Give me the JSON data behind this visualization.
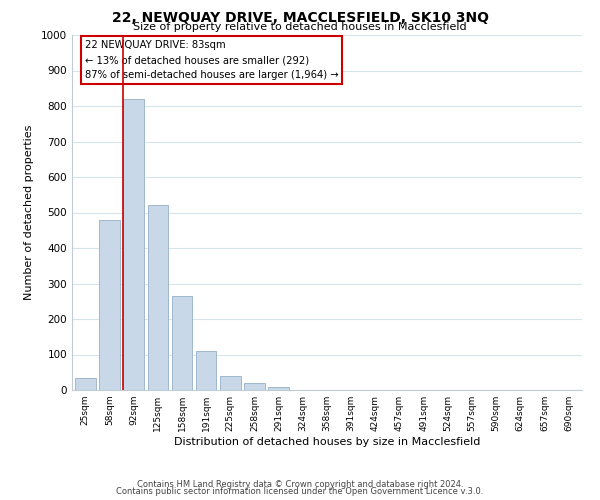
{
  "title": "22, NEWQUAY DRIVE, MACCLESFIELD, SK10 3NQ",
  "subtitle": "Size of property relative to detached houses in Macclesfield",
  "xlabel": "Distribution of detached houses by size in Macclesfield",
  "ylabel": "Number of detached properties",
  "bar_labels": [
    "25sqm",
    "58sqm",
    "92sqm",
    "125sqm",
    "158sqm",
    "191sqm",
    "225sqm",
    "258sqm",
    "291sqm",
    "324sqm",
    "358sqm",
    "391sqm",
    "424sqm",
    "457sqm",
    "491sqm",
    "524sqm",
    "557sqm",
    "590sqm",
    "624sqm",
    "657sqm",
    "690sqm"
  ],
  "bar_values": [
    35,
    480,
    820,
    520,
    265,
    110,
    40,
    20,
    8,
    0,
    0,
    0,
    0,
    0,
    0,
    0,
    0,
    0,
    0,
    0,
    0
  ],
  "bar_color": "#c8d8e8",
  "bar_edge_color": "#a0b8cc",
  "vline_color": "#cc0000",
  "annotation_box_text": "22 NEWQUAY DRIVE: 83sqm\n← 13% of detached houses are smaller (292)\n87% of semi-detached houses are larger (1,964) →",
  "ylim": [
    0,
    1000
  ],
  "yticks": [
    0,
    100,
    200,
    300,
    400,
    500,
    600,
    700,
    800,
    900,
    1000
  ],
  "footer_line1": "Contains HM Land Registry data © Crown copyright and database right 2024.",
  "footer_line2": "Contains public sector information licensed under the Open Government Licence v.3.0.",
  "background_color": "#ffffff",
  "grid_color": "#d8e4ec"
}
